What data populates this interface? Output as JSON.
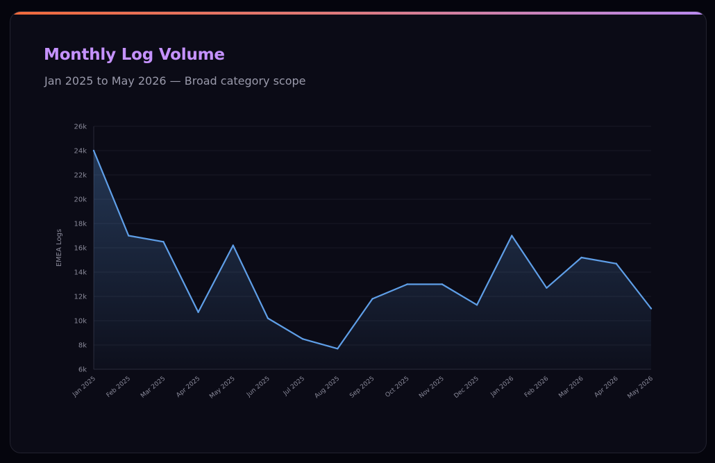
{
  "card": {
    "title": "Monthly Log Volume",
    "subtitle": "Jan 2025 to May 2026 — Broad category scope"
  },
  "colors": {
    "background": "#05050d",
    "card": "#0b0b16",
    "title": "#c592ff",
    "line": "#5f9fe8",
    "accent_start": "#f06a3c",
    "accent_end": "#b98af0"
  },
  "chart_data": {
    "type": "area",
    "ylabel": "EMEA Logs",
    "xlabel": "",
    "ylim": [
      6000,
      26000
    ],
    "yticks": [
      6000,
      8000,
      10000,
      12000,
      14000,
      16000,
      18000,
      20000,
      22000,
      24000,
      26000
    ],
    "ytick_labels": [
      "6k",
      "8k",
      "10k",
      "12k",
      "14k",
      "16k",
      "18k",
      "20k",
      "22k",
      "24k",
      "26k"
    ],
    "grid": true,
    "categories": [
      "Jan 2025",
      "Feb 2025",
      "Mar 2025",
      "Apr 2025",
      "May 2025",
      "Jun 2025",
      "Jul 2025",
      "Aug 2025",
      "Sep 2025",
      "Oct 2025",
      "Nov 2025",
      "Dec 2025",
      "Jan 2026",
      "Feb 2026",
      "Mar 2026",
      "Apr 2026",
      "May 2026"
    ],
    "values": [
      24000,
      17000,
      16500,
      10700,
      16200,
      10200,
      8500,
      7700,
      11800,
      13000,
      13000,
      11300,
      17000,
      12700,
      15200,
      14700,
      11000
    ]
  }
}
